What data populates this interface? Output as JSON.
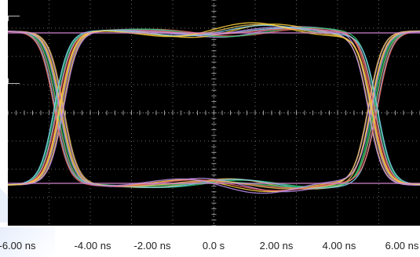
{
  "x_axis": {
    "tick_labels": [
      "-6.00 ns",
      "-4.00 ns",
      "-2.00 ns",
      "0.0 s",
      "2.00 ns",
      "4.00 ns",
      "6.00 ns"
    ]
  },
  "display": {
    "background": "#000000",
    "grid_color": "#6b6b6b",
    "trace_colors": [
      "#2ec46b",
      "#e8c15a",
      "#f06a6a",
      "#b88be6",
      "#7fd3f0",
      "#ffd23c"
    ]
  }
}
